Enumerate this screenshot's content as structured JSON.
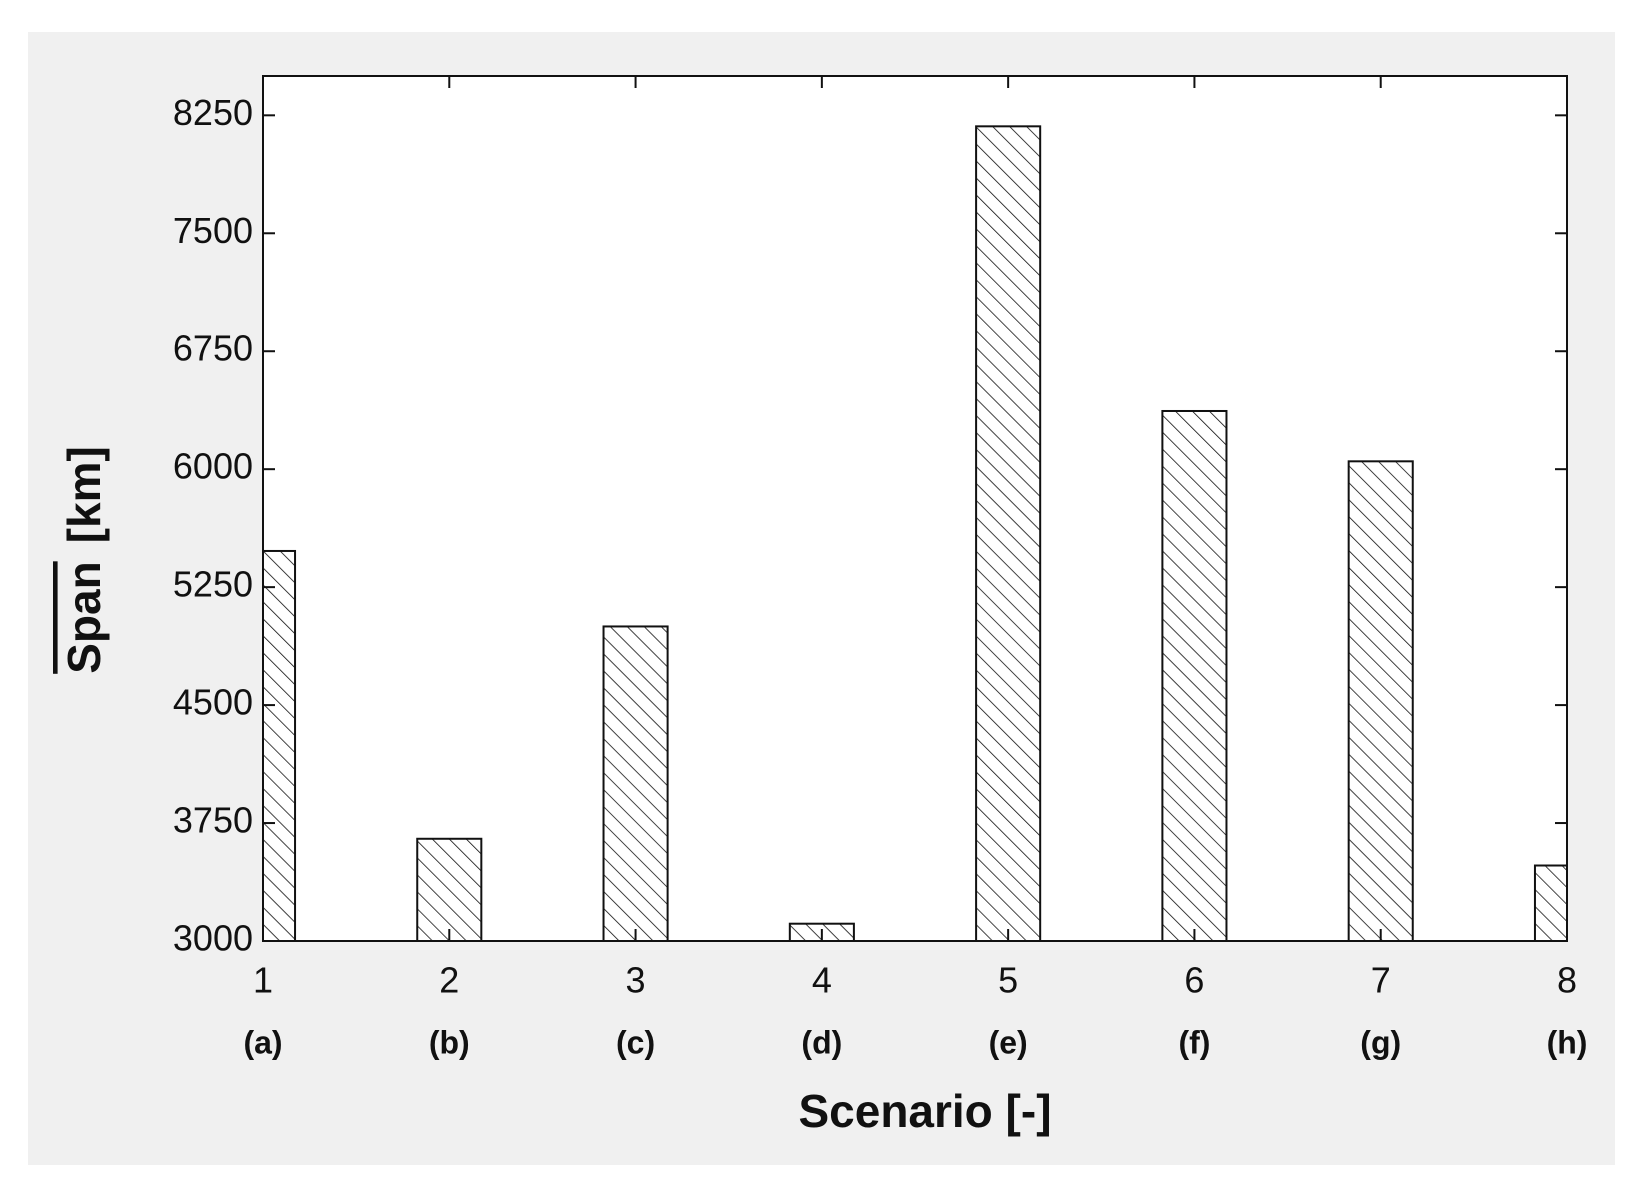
{
  "chart_data": {
    "type": "bar",
    "xlabel": "Scenario  [-]",
    "ylabel_symbol": "Span",
    "ylabel_unit": "[km]",
    "x": [
      1,
      2,
      3,
      4,
      5,
      6,
      7,
      8
    ],
    "x_sublabels": [
      "(a)",
      "(b)",
      "(c)",
      "(d)",
      "(e)",
      "(f)",
      "(g)",
      "(h)"
    ],
    "values": [
      5480,
      3650,
      5000,
      3110,
      8180,
      6370,
      6050,
      3480
    ],
    "color": "#111111",
    "hatch": "\\",
    "xlim": [
      1,
      8
    ],
    "xticks": [
      1,
      2,
      3,
      4,
      5,
      6,
      7,
      8
    ],
    "ylim": [
      3000,
      8500
    ],
    "yticks": [
      3000,
      3750,
      4500,
      5250,
      6000,
      6750,
      7500,
      8250
    ]
  }
}
